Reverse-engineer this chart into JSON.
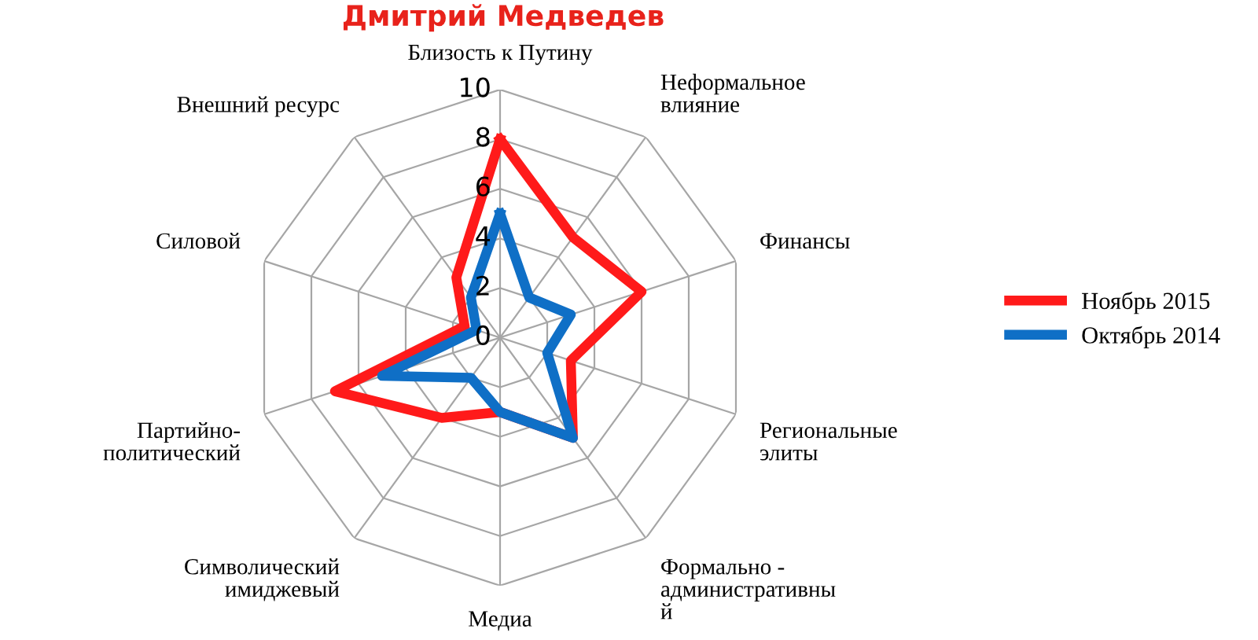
{
  "chart_data": {
    "type": "radar",
    "title": "Дмитрий Медведев",
    "categories": [
      "Близость к Путину",
      "Неформальное\nвлияние",
      "Финансы",
      "Региональные\nэлиты",
      "Формально -\nадминистративны\nй",
      "Медиа",
      "Символический\nимиджевый",
      "Партийно-\nполитический",
      "Силовой",
      "Внешний ресурс"
    ],
    "series": [
      {
        "name": "Ноябрь 2015",
        "color": "#ff1a1a",
        "values": [
          8,
          5,
          6,
          3,
          5,
          3,
          4,
          7,
          1.5,
          3
        ]
      },
      {
        "name": "Октябрь 2014",
        "color": "#0f6fc6",
        "values": [
          5,
          2,
          3,
          2,
          5,
          3,
          2,
          5,
          1,
          2
        ]
      }
    ],
    "ylim": [
      0,
      10
    ],
    "yticks": [
      0,
      2,
      4,
      6,
      8,
      10
    ],
    "grid": true,
    "legend": "right",
    "line_style": "solid",
    "marker": "none"
  }
}
